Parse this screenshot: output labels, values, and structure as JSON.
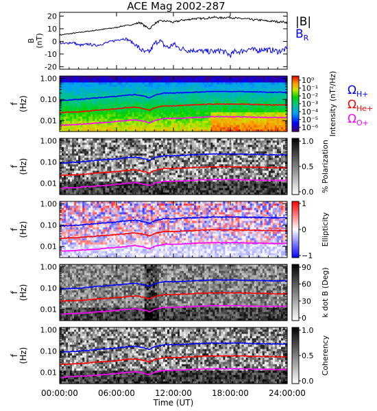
{
  "title": "ACE Mag 2002-287",
  "chart_data": {
    "type": "figure",
    "title": "ACE Mag 2002-287",
    "xlabel": "Time (UT)",
    "xlim_hours": [
      0,
      24
    ],
    "x_tick_labels": [
      "00:00:00",
      "06:00:00",
      "12:00:00",
      "18:00:00",
      "24:00:00"
    ],
    "x_tick_values_hours": [
      0,
      6,
      12,
      18,
      24
    ],
    "panels": [
      {
        "id": "field",
        "type": "line",
        "ylabel": [
          "B",
          "(nT)"
        ],
        "ylim": [
          -22,
          23
        ],
        "y_ticks": [
          -20,
          -10,
          0,
          10,
          20
        ],
        "legend": [
          {
            "label": "|B|",
            "color": "#000000"
          },
          {
            "label": "B",
            "sub": "R",
            "color": "#0000ff"
          }
        ],
        "series": [
          {
            "name": "|B|",
            "color": "#000000",
            "x_hours": [
              0,
              0.5,
              1,
              1.5,
              2,
              2.5,
              3,
              3.5,
              4,
              4.5,
              5,
              5.5,
              6,
              6.5,
              7,
              7.5,
              8,
              8.5,
              9,
              9.5,
              10,
              10.5,
              11,
              11.5,
              12,
              12.5,
              13,
              13.5,
              14,
              14.5,
              15,
              15.5,
              16,
              16.5,
              17,
              17.5,
              18,
              18.5,
              19,
              19.5,
              20,
              20.5,
              21,
              21.5,
              22,
              22.5,
              23,
              23.5,
              24
            ],
            "values": [
              5,
              5.5,
              6,
              6.5,
              7,
              7.5,
              8,
              8.5,
              9,
              9.5,
              10,
              10.5,
              11,
              12,
              12.5,
              13,
              14,
              15,
              12,
              10,
              14,
              16,
              16,
              16,
              15,
              16,
              17,
              17,
              18,
              18,
              18,
              18.5,
              19,
              19,
              18.5,
              19,
              19,
              18.5,
              18,
              18,
              17.5,
              17,
              17,
              16.5,
              16,
              16,
              15.5,
              15.5,
              15
            ]
          },
          {
            "name": "B_R",
            "color": "#0000ff",
            "x_hours": [
              0,
              0.5,
              1,
              1.5,
              2,
              2.5,
              3,
              3.5,
              4,
              4.5,
              5,
              5.5,
              6,
              6.5,
              7,
              7.5,
              8,
              8.5,
              9,
              9.5,
              10,
              10.5,
              11,
              11.5,
              12,
              12.5,
              13,
              13.5,
              14,
              14.5,
              15,
              15.5,
              16,
              16.5,
              17,
              17.5,
              18,
              18.5,
              19,
              19.5,
              20,
              20.5,
              21,
              21.5,
              22,
              22.5,
              23,
              23.5,
              24
            ],
            "values": [
              -1,
              -2,
              -1,
              -1,
              -3,
              -3,
              -2,
              -3,
              -3,
              -2,
              -1,
              0,
              1,
              2,
              2,
              0,
              -3,
              -6,
              -9,
              -8,
              -2,
              1,
              -3,
              -5,
              -2,
              -5,
              -6,
              -7,
              -7,
              -7,
              -8,
              -8,
              -8,
              -8,
              -7,
              -9,
              -11,
              -8,
              -8,
              -7,
              -6,
              -7,
              -7,
              -6,
              -7,
              -7,
              -8,
              -7,
              -6
            ]
          }
        ]
      },
      {
        "id": "intensity",
        "type": "heatmap",
        "ylabel": [
          "f",
          "(Hz)"
        ],
        "y_scale": "log",
        "ylim": [
          0.003,
          1.3
        ],
        "y_tick_labels": [
          "1.00",
          "0.10",
          "0.01"
        ],
        "colorbar": {
          "label": "Intensity (nT²/Hz)",
          "scale": "log",
          "palette": "rainbow",
          "tick_labels": [
            "10⁰",
            "10⁻¹",
            "10⁻²",
            "10⁻³",
            "10⁻⁴",
            "10⁻⁵",
            "10⁻⁶"
          ]
        }
      },
      {
        "id": "polarization",
        "type": "heatmap",
        "ylabel": [
          "f",
          "(Hz)"
        ],
        "y_scale": "log",
        "ylim": [
          0.003,
          1.3
        ],
        "y_tick_labels": [
          "1.00",
          "0.10",
          "0.01"
        ],
        "colorbar": {
          "label": "% Polarization",
          "palette": "gray",
          "range": [
            0,
            1
          ],
          "tick_labels": [
            "1.0",
            "0.5",
            "0.0"
          ]
        }
      },
      {
        "id": "ellipticity",
        "type": "heatmap",
        "ylabel": [
          "f",
          "(Hz)"
        ],
        "y_scale": "log",
        "ylim": [
          0.003,
          1.3
        ],
        "y_tick_labels": [
          "1.00",
          "0.10",
          "0.01"
        ],
        "colorbar": {
          "label": "Ellipticity",
          "palette": "blue-white-red",
          "range": [
            -1,
            1
          ],
          "tick_labels": [
            "1",
            "0",
            "−1"
          ]
        }
      },
      {
        "id": "kdotb",
        "type": "heatmap",
        "ylabel": [
          "f",
          "(Hz)"
        ],
        "y_scale": "log",
        "ylim": [
          0.003,
          1.3
        ],
        "y_tick_labels": [
          "1.00",
          "0.10",
          "0.01"
        ],
        "colorbar": {
          "label": "k dot B (Deg)",
          "palette": "gray",
          "range": [
            0,
            90
          ],
          "tick_labels": [
            "90",
            "60",
            "30",
            "0"
          ]
        }
      },
      {
        "id": "coherency",
        "type": "heatmap",
        "ylabel": [
          "f",
          "(Hz)"
        ],
        "y_scale": "log",
        "ylim": [
          0.003,
          1.3
        ],
        "y_tick_labels": [
          "1.00",
          "0.10",
          "0.01"
        ],
        "colorbar": {
          "label": "Coherency",
          "palette": "gray",
          "range": [
            0,
            1
          ],
          "tick_labels": [
            "1.0",
            "0.5",
            "0.0"
          ]
        }
      }
    ],
    "gyrofrequency_overlay": {
      "x_hours": [
        0,
        1,
        2,
        3,
        4,
        5,
        6,
        7,
        8,
        9,
        9.5,
        10,
        11,
        12,
        13,
        14,
        15,
        16,
        17,
        18,
        19,
        20,
        21,
        22,
        23,
        24
      ],
      "series": [
        {
          "name": "Ω_H+",
          "label": "Ω",
          "sub": "H+",
          "color": "#0000ff",
          "values": [
            0.09,
            0.095,
            0.1,
            0.11,
            0.12,
            0.13,
            0.14,
            0.16,
            0.17,
            0.14,
            0.12,
            0.16,
            0.2,
            0.2,
            0.21,
            0.22,
            0.23,
            0.24,
            0.24,
            0.24,
            0.24,
            0.23,
            0.23,
            0.22,
            0.22,
            0.22
          ]
        },
        {
          "name": "Ω_He+",
          "label": "Ω",
          "sub": "He+",
          "color": "#ff0000",
          "values": [
            0.024,
            0.025,
            0.026,
            0.028,
            0.031,
            0.033,
            0.036,
            0.04,
            0.043,
            0.036,
            0.031,
            0.04,
            0.05,
            0.05,
            0.052,
            0.055,
            0.058,
            0.06,
            0.06,
            0.06,
            0.06,
            0.058,
            0.057,
            0.056,
            0.055,
            0.055
          ]
        },
        {
          "name": "Ω_O+",
          "label": "Ω",
          "sub": "O+",
          "color": "#ff00ff",
          "values": [
            0.006,
            0.0062,
            0.0066,
            0.007,
            0.0076,
            0.0082,
            0.009,
            0.01,
            0.011,
            0.009,
            0.0078,
            0.01,
            0.0125,
            0.0125,
            0.013,
            0.0138,
            0.0145,
            0.015,
            0.015,
            0.015,
            0.015,
            0.0145,
            0.0142,
            0.014,
            0.0138,
            0.0138
          ]
        }
      ]
    }
  }
}
